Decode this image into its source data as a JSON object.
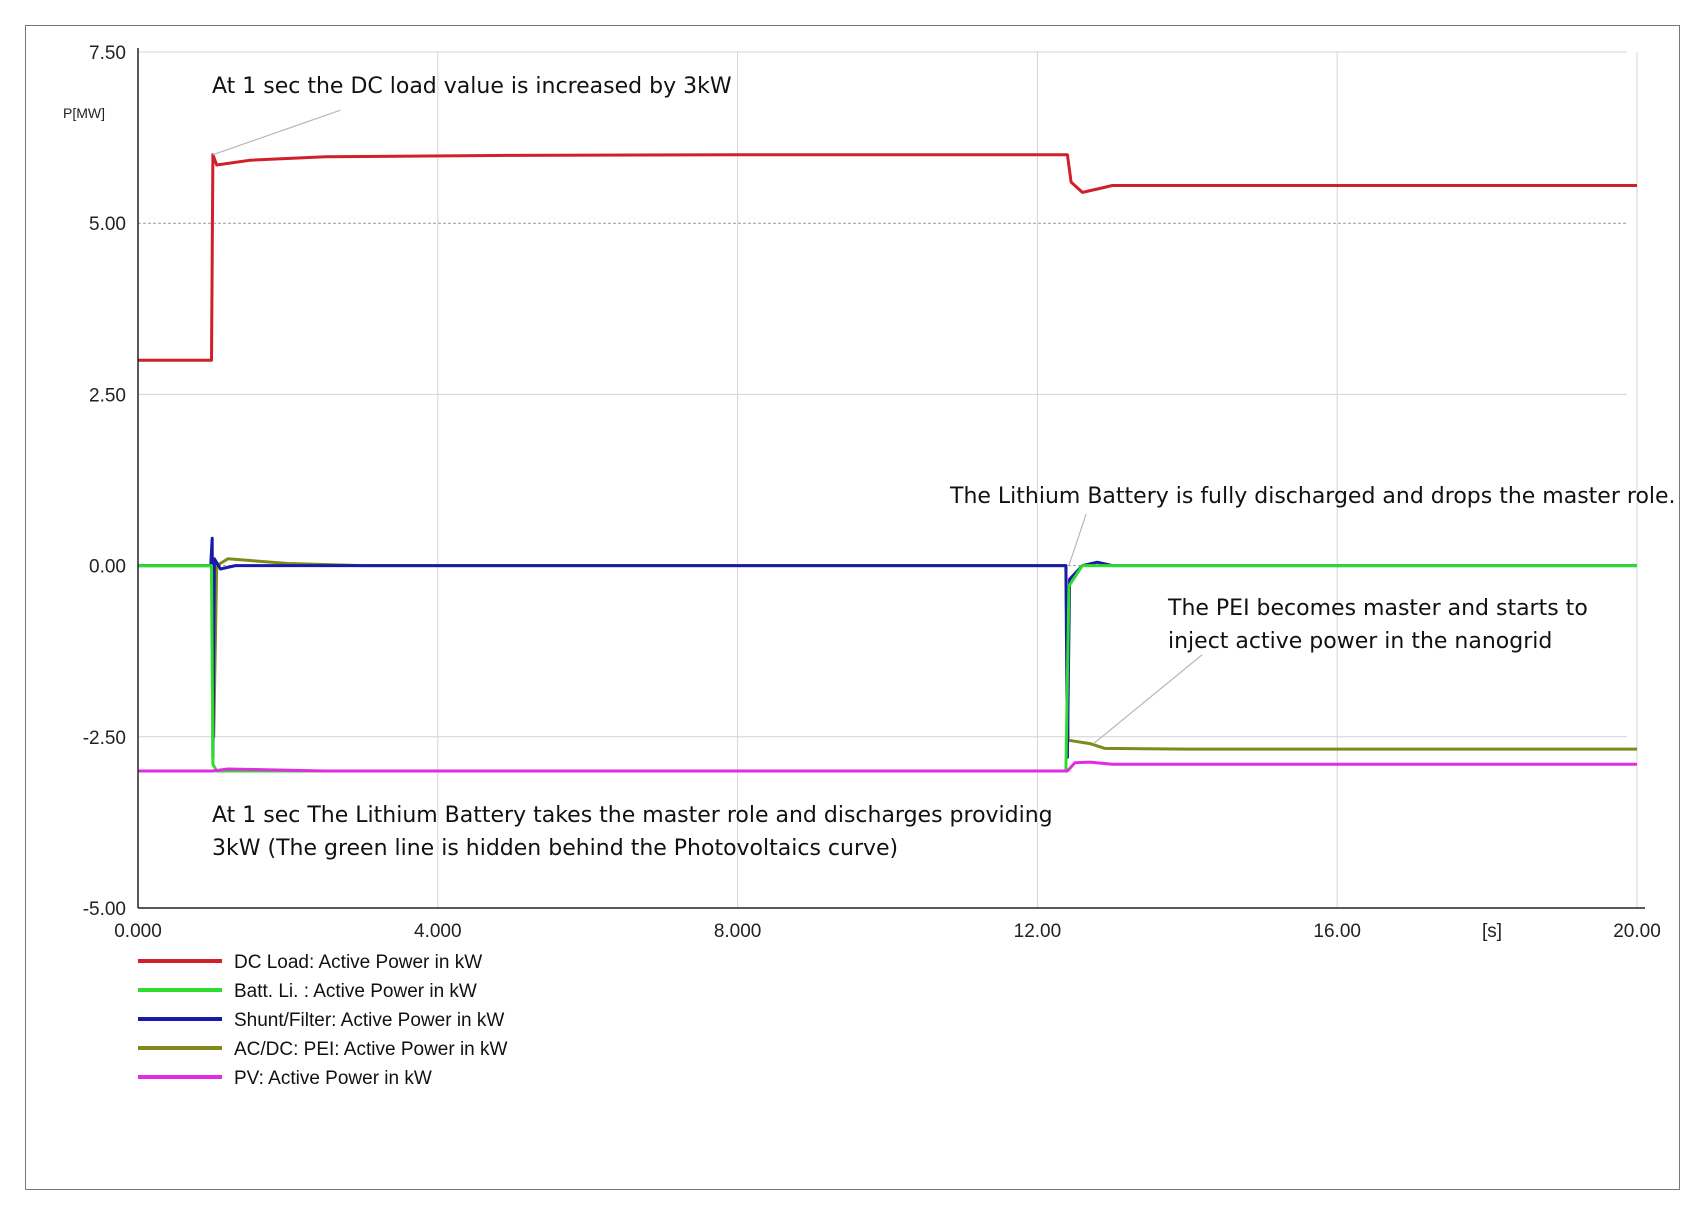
{
  "chart_data": {
    "type": "line",
    "title": "",
    "xlabel": "[s]",
    "ylabel": "P[MW]",
    "xlim": [
      0,
      20
    ],
    "ylim": [
      -5,
      7.5
    ],
    "x_ticks": [
      {
        "value": 0,
        "label": "0.000"
      },
      {
        "value": 4,
        "label": "4.000"
      },
      {
        "value": 8,
        "label": "8.000"
      },
      {
        "value": 12,
        "label": "12.00"
      },
      {
        "value": 16,
        "label": "16.00"
      },
      {
        "value": 20,
        "label": "20.00"
      }
    ],
    "y_ticks": [
      {
        "value": 7.5,
        "label": "7.50"
      },
      {
        "value": 5,
        "label": "5.00"
      },
      {
        "value": 2.5,
        "label": "2.50"
      },
      {
        "value": 0,
        "label": "0.00"
      },
      {
        "value": -2.5,
        "label": "-2.50"
      },
      {
        "value": -5,
        "label": "-5.00"
      }
    ],
    "grid": true,
    "legend_position": "bottom-left",
    "series": [
      {
        "name": "DC Load: Active Power in kW",
        "color": "#d0202a",
        "points": [
          [
            0,
            3.0
          ],
          [
            0.98,
            3.0
          ],
          [
            1.0,
            6.0
          ],
          [
            1.05,
            5.85
          ],
          [
            1.5,
            5.92
          ],
          [
            2.5,
            5.97
          ],
          [
            5,
            5.99
          ],
          [
            8,
            6.0
          ],
          [
            12.4,
            6.0
          ],
          [
            12.45,
            5.6
          ],
          [
            12.6,
            5.45
          ],
          [
            12.8,
            5.5
          ],
          [
            13.0,
            5.55
          ],
          [
            16,
            5.55
          ],
          [
            20,
            5.55
          ]
        ]
      },
      {
        "name": "Batt. Li.   : Active Power in kW",
        "color": "#2ddc2d",
        "points": [
          [
            0,
            0.0
          ],
          [
            0.98,
            0.0
          ],
          [
            1.0,
            -2.9
          ],
          [
            1.05,
            -3.0
          ],
          [
            8,
            -3.0
          ],
          [
            12.38,
            -3.0
          ],
          [
            12.42,
            -0.3
          ],
          [
            12.6,
            0.0
          ],
          [
            20,
            0.0
          ]
        ]
      },
      {
        "name": "Shunt/Filter: Active Power in kW",
        "color": "#1a1aa8",
        "points": [
          [
            0,
            0.0
          ],
          [
            0.97,
            0.0
          ],
          [
            0.99,
            0.4
          ],
          [
            1.0,
            -2.8
          ],
          [
            1.02,
            0.1
          ],
          [
            1.1,
            -0.05
          ],
          [
            1.3,
            0.0
          ],
          [
            12.38,
            0.0
          ],
          [
            12.4,
            -2.8
          ],
          [
            12.43,
            -0.2
          ],
          [
            12.6,
            0.0
          ],
          [
            12.8,
            0.05
          ],
          [
            13.0,
            0.0
          ],
          [
            20,
            0.0
          ]
        ]
      },
      {
        "name": "AC/DC: PEI: Active Power in kW",
        "color": "#7f8a1a",
        "points": [
          [
            0,
            0.0
          ],
          [
            0.99,
            0.0
          ],
          [
            1.01,
            -2.5
          ],
          [
            1.05,
            0.0
          ],
          [
            1.2,
            0.1
          ],
          [
            2.0,
            0.03
          ],
          [
            3.0,
            0.0
          ],
          [
            12.38,
            0.0
          ],
          [
            12.41,
            -2.55
          ],
          [
            12.7,
            -2.6
          ],
          [
            12.9,
            -2.67
          ],
          [
            14,
            -2.68
          ],
          [
            20,
            -2.68
          ]
        ]
      },
      {
        "name": "PV: Active Power in kW",
        "color": "#e22be2",
        "points": [
          [
            0,
            -3.0
          ],
          [
            1.0,
            -3.0
          ],
          [
            1.2,
            -2.97
          ],
          [
            2.5,
            -3.0
          ],
          [
            8,
            -3.0
          ],
          [
            12.4,
            -3.0
          ],
          [
            12.5,
            -2.88
          ],
          [
            12.7,
            -2.87
          ],
          [
            13,
            -2.9
          ],
          [
            20,
            -2.9
          ]
        ]
      }
    ],
    "annotations": [
      {
        "lines": [
          "At 1 sec the DC load value is increased by 3kW"
        ],
        "pointer_from": [
          2.7,
          6.65
        ],
        "pointer_to": [
          1.0,
          6.0
        ]
      },
      {
        "lines": [
          "The Lithium Battery is fully discharged and drops the master role."
        ],
        "pointer_from": [
          12.65,
          0.75
        ],
        "pointer_to": [
          12.42,
          0.0
        ]
      },
      {
        "lines": [
          "The PEI becomes master and starts to",
          "inject active power in the nanogrid"
        ],
        "pointer_from": [
          14.2,
          -1.3
        ],
        "pointer_to": [
          12.75,
          -2.6
        ]
      },
      {
        "lines": [
          "At 1 sec The Lithium Battery takes the master role and discharges providing",
          "3kW (The green line is hidden behind the Photovoltaics curve)"
        ],
        "pointer_from": null,
        "pointer_to": null
      }
    ]
  }
}
